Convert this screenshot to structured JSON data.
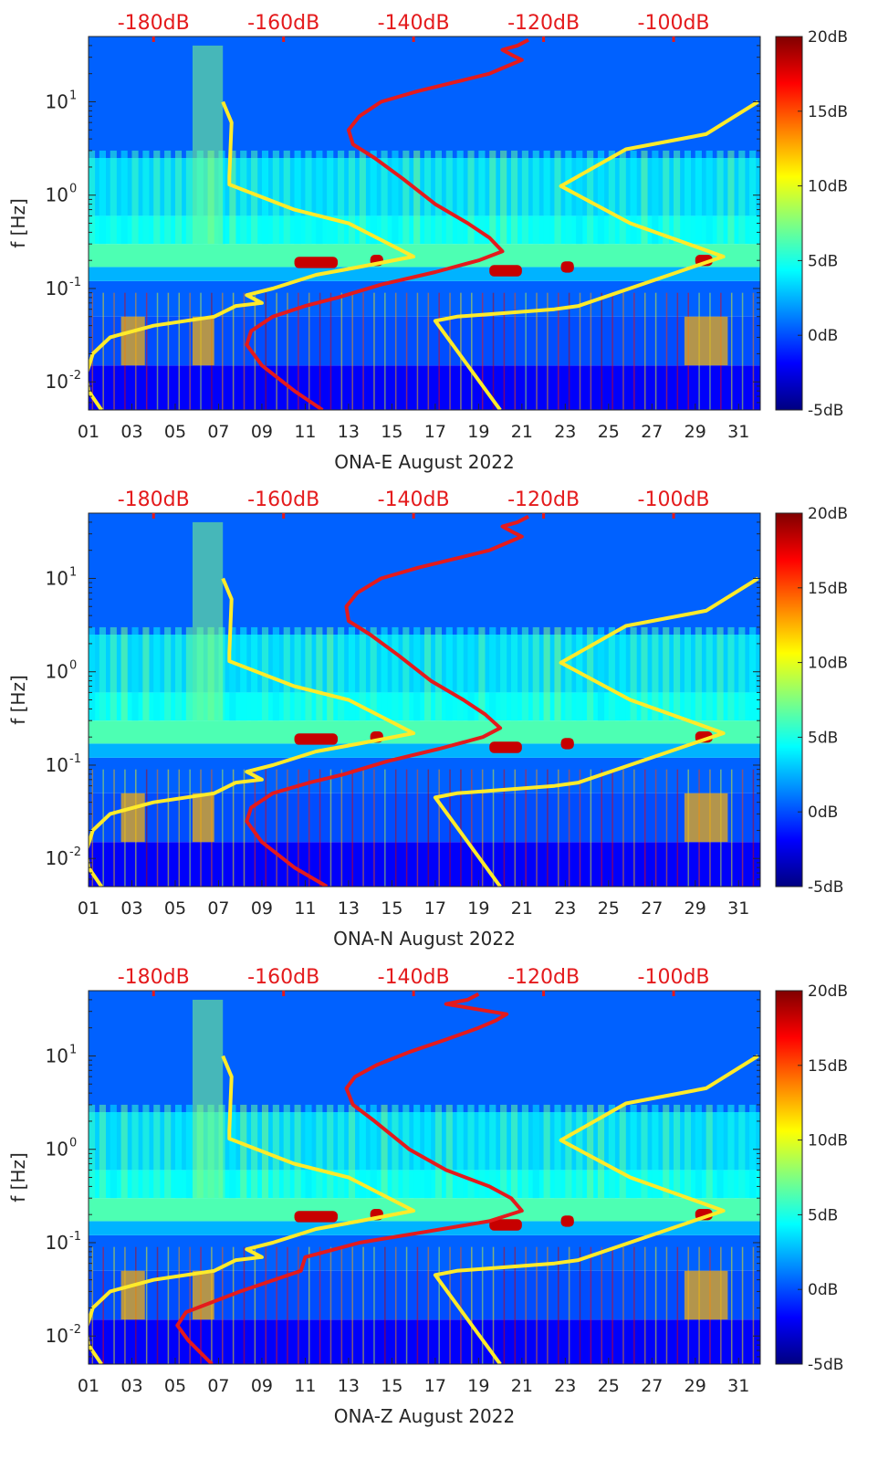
{
  "chart_data": [
    {
      "type": "heatmap",
      "component": "E",
      "xlabel": "ONA-E August 2022",
      "ylabel": "f [Hz]",
      "x_tick_labels": [
        "01",
        "03",
        "05",
        "07",
        "09",
        "11",
        "13",
        "15",
        "17",
        "19",
        "21",
        "23",
        "25",
        "27",
        "29",
        "31"
      ],
      "x_tick_days": [
        1,
        3,
        5,
        7,
        9,
        11,
        13,
        15,
        17,
        19,
        21,
        23,
        25,
        27,
        29,
        31
      ],
      "xlim": [
        1,
        32
      ],
      "y_scale": "log",
      "ylim": [
        0.005,
        50
      ],
      "y_ticks": [
        0.01,
        0.1,
        1,
        10
      ],
      "y_tick_labels": [
        {
          "base": "10",
          "exp": "-2"
        },
        {
          "base": "10",
          "exp": "-1"
        },
        {
          "base": "10",
          "exp": "0"
        },
        {
          "base": "10",
          "exp": "1"
        }
      ],
      "top_axis_labels": [
        "-180dB",
        "-160dB",
        "-140dB",
        "-120dB",
        "-100dB"
      ],
      "top_axis_db": [
        -180,
        -160,
        -140,
        -120,
        -100
      ],
      "top_axis_day_positions": [
        4,
        10,
        16,
        22,
        28
      ],
      "colorbar": {
        "min_db": -5,
        "max_db": 20,
        "tick_labels": [
          "20dB",
          "15dB",
          "10dB",
          "5dB",
          "0dB",
          "-5dB"
        ],
        "tick_values": [
          20,
          15,
          10,
          5,
          0,
          -5
        ],
        "colormap": "jet"
      },
      "series": [
        {
          "color": "#ffeb2a",
          "day": [
            1.6,
            1.0,
            0.9,
            1.2,
            2.0,
            4.0,
            6.8,
            7.8,
            9.0,
            8.3,
            9.5,
            11.5,
            13.5,
            16.0,
            13.0,
            10.5,
            7.5,
            7.5,
            7.6,
            7.2
          ],
          "freq": [
            0.005,
            0.008,
            0.012,
            0.02,
            0.03,
            0.04,
            0.05,
            0.065,
            0.07,
            0.085,
            0.1,
            0.14,
            0.17,
            0.22,
            0.5,
            0.7,
            1.3,
            1.6,
            6,
            10
          ]
        },
        {
          "color": "#ffeb2a",
          "day": [
            20.0,
            17.0,
            18.0,
            22.5,
            23.6,
            30.3,
            26.0,
            22.8,
            25.8,
            29.5,
            31.9
          ],
          "freq": [
            0.005,
            0.045,
            0.05,
            0.06,
            0.065,
            0.22,
            0.5,
            1.25,
            3.1,
            4.5,
            10
          ]
        },
        {
          "color": "#e41a1c",
          "day": [
            11.8,
            10.5,
            9.0,
            8.3,
            8.5,
            9.5,
            11.0,
            12.5,
            14.5,
            17.0,
            19.0,
            20.1,
            19.5,
            18.5,
            17.0,
            15.5,
            14.2,
            13.2,
            13.0,
            13.5,
            14.5,
            16.2,
            17.8,
            19.5,
            20.3,
            21.0,
            20.5,
            20.1,
            20.8,
            21.3
          ],
          "freq": [
            0.005,
            0.008,
            0.015,
            0.025,
            0.035,
            0.05,
            0.065,
            0.08,
            0.11,
            0.15,
            0.2,
            0.25,
            0.35,
            0.5,
            0.8,
            1.5,
            2.5,
            3.5,
            5,
            7,
            10,
            13,
            16,
            20,
            24,
            28,
            32,
            36,
            40,
            46
          ]
        }
      ]
    },
    {
      "type": "heatmap",
      "component": "N",
      "xlabel": "ONA-N August 2022",
      "ylabel": "f [Hz]",
      "x_tick_labels": [
        "01",
        "03",
        "05",
        "07",
        "09",
        "11",
        "13",
        "15",
        "17",
        "19",
        "21",
        "23",
        "25",
        "27",
        "29",
        "31"
      ],
      "x_tick_days": [
        1,
        3,
        5,
        7,
        9,
        11,
        13,
        15,
        17,
        19,
        21,
        23,
        25,
        27,
        29,
        31
      ],
      "xlim": [
        1,
        32
      ],
      "y_scale": "log",
      "ylim": [
        0.005,
        50
      ],
      "y_ticks": [
        0.01,
        0.1,
        1,
        10
      ],
      "y_tick_labels": [
        {
          "base": "10",
          "exp": "-2"
        },
        {
          "base": "10",
          "exp": "-1"
        },
        {
          "base": "10",
          "exp": "0"
        },
        {
          "base": "10",
          "exp": "1"
        }
      ],
      "top_axis_labels": [
        "-180dB",
        "-160dB",
        "-140dB",
        "-120dB",
        "-100dB"
      ],
      "top_axis_db": [
        -180,
        -160,
        -140,
        -120,
        -100
      ],
      "top_axis_day_positions": [
        4,
        10,
        16,
        22,
        28
      ],
      "colorbar": {
        "min_db": -5,
        "max_db": 20,
        "tick_labels": [
          "20dB",
          "15dB",
          "10dB",
          "5dB",
          "0dB",
          "-5dB"
        ],
        "tick_values": [
          20,
          15,
          10,
          5,
          0,
          -5
        ],
        "colormap": "jet"
      },
      "series": [
        {
          "color": "#ffeb2a",
          "day": [
            1.6,
            1.0,
            0.9,
            1.2,
            2.0,
            4.0,
            6.8,
            7.8,
            9.0,
            8.3,
            9.5,
            11.5,
            13.5,
            16.0,
            13.0,
            10.5,
            7.5,
            7.5,
            7.6,
            7.2
          ],
          "freq": [
            0.005,
            0.008,
            0.012,
            0.02,
            0.03,
            0.04,
            0.05,
            0.065,
            0.07,
            0.085,
            0.1,
            0.14,
            0.17,
            0.22,
            0.5,
            0.7,
            1.3,
            1.6,
            6,
            10
          ]
        },
        {
          "color": "#ffeb2a",
          "day": [
            20.0,
            17.0,
            18.0,
            22.5,
            23.6,
            30.3,
            26.0,
            22.8,
            25.8,
            29.5,
            31.9
          ],
          "freq": [
            0.005,
            0.045,
            0.05,
            0.06,
            0.065,
            0.22,
            0.5,
            1.25,
            3.1,
            4.5,
            10
          ]
        },
        {
          "color": "#e41a1c",
          "day": [
            12.0,
            10.5,
            9.0,
            8.3,
            8.5,
            9.5,
            11.2,
            12.8,
            14.8,
            17.2,
            19.2,
            20.0,
            19.3,
            18.3,
            16.8,
            15.3,
            14.0,
            13.0,
            12.9,
            13.4,
            14.5,
            16.2,
            17.8,
            19.5,
            20.3,
            21.0,
            20.5,
            20.1,
            20.8,
            21.3
          ],
          "freq": [
            0.005,
            0.008,
            0.015,
            0.025,
            0.035,
            0.05,
            0.065,
            0.08,
            0.11,
            0.15,
            0.2,
            0.25,
            0.35,
            0.5,
            0.8,
            1.5,
            2.5,
            3.5,
            5,
            7,
            10,
            13,
            16,
            20,
            24,
            28,
            32,
            36,
            40,
            46
          ]
        }
      ]
    },
    {
      "type": "heatmap",
      "component": "Z",
      "xlabel": "ONA-Z August 2022",
      "ylabel": "f [Hz]",
      "x_tick_labels": [
        "01",
        "03",
        "05",
        "07",
        "09",
        "11",
        "13",
        "15",
        "17",
        "19",
        "21",
        "23",
        "25",
        "27",
        "29",
        "31"
      ],
      "x_tick_days": [
        1,
        3,
        5,
        7,
        9,
        11,
        13,
        15,
        17,
        19,
        21,
        23,
        25,
        27,
        29,
        31
      ],
      "xlim": [
        1,
        32
      ],
      "y_scale": "log",
      "ylim": [
        0.005,
        50
      ],
      "y_ticks": [
        0.01,
        0.1,
        1,
        10
      ],
      "y_tick_labels": [
        {
          "base": "10",
          "exp": "-2"
        },
        {
          "base": "10",
          "exp": "-1"
        },
        {
          "base": "10",
          "exp": "0"
        },
        {
          "base": "10",
          "exp": "1"
        }
      ],
      "top_axis_labels": [
        "-180dB",
        "-160dB",
        "-140dB",
        "-120dB",
        "-100dB"
      ],
      "top_axis_db": [
        -180,
        -160,
        -140,
        -120,
        -100
      ],
      "top_axis_day_positions": [
        4,
        10,
        16,
        22,
        28
      ],
      "colorbar": {
        "min_db": -5,
        "max_db": 20,
        "tick_labels": [
          "20dB",
          "15dB",
          "10dB",
          "5dB",
          "0dB",
          "-5dB"
        ],
        "tick_values": [
          20,
          15,
          10,
          5,
          0,
          -5
        ],
        "colormap": "jet"
      },
      "series": [
        {
          "color": "#ffeb2a",
          "day": [
            1.6,
            1.0,
            0.9,
            1.2,
            2.0,
            4.0,
            6.8,
            7.8,
            9.0,
            8.3,
            9.5,
            11.5,
            13.5,
            16.0,
            13.0,
            10.5,
            7.5,
            7.5,
            7.6,
            7.2
          ],
          "freq": [
            0.005,
            0.008,
            0.012,
            0.02,
            0.03,
            0.04,
            0.05,
            0.065,
            0.07,
            0.085,
            0.1,
            0.14,
            0.17,
            0.22,
            0.5,
            0.7,
            1.3,
            1.6,
            6,
            10
          ]
        },
        {
          "color": "#ffeb2a",
          "day": [
            20.0,
            17.0,
            18.0,
            22.5,
            23.6,
            30.3,
            26.0,
            22.8,
            25.8,
            29.5,
            31.9
          ],
          "freq": [
            0.005,
            0.045,
            0.05,
            0.06,
            0.065,
            0.22,
            0.5,
            1.25,
            3.1,
            4.5,
            10
          ]
        },
        {
          "color": "#e41a1c",
          "day": [
            6.7,
            5.6,
            5.1,
            5.5,
            8.0,
            10.8,
            11.0,
            13.5,
            16.5,
            19.5,
            21.0,
            20.5,
            19.5,
            17.5,
            15.8,
            14.2,
            13.2,
            12.9,
            13.3,
            14.3,
            15.8,
            17.5,
            19.0,
            19.8,
            20.3,
            18.8,
            17.5,
            18.5,
            19.0
          ],
          "freq": [
            0.005,
            0.009,
            0.013,
            0.018,
            0.03,
            0.05,
            0.07,
            0.1,
            0.13,
            0.17,
            0.22,
            0.3,
            0.4,
            0.6,
            1.0,
            2.0,
            3.0,
            4.5,
            6,
            8,
            11,
            15,
            20,
            24,
            28,
            32,
            36,
            40,
            46
          ]
        }
      ]
    }
  ]
}
